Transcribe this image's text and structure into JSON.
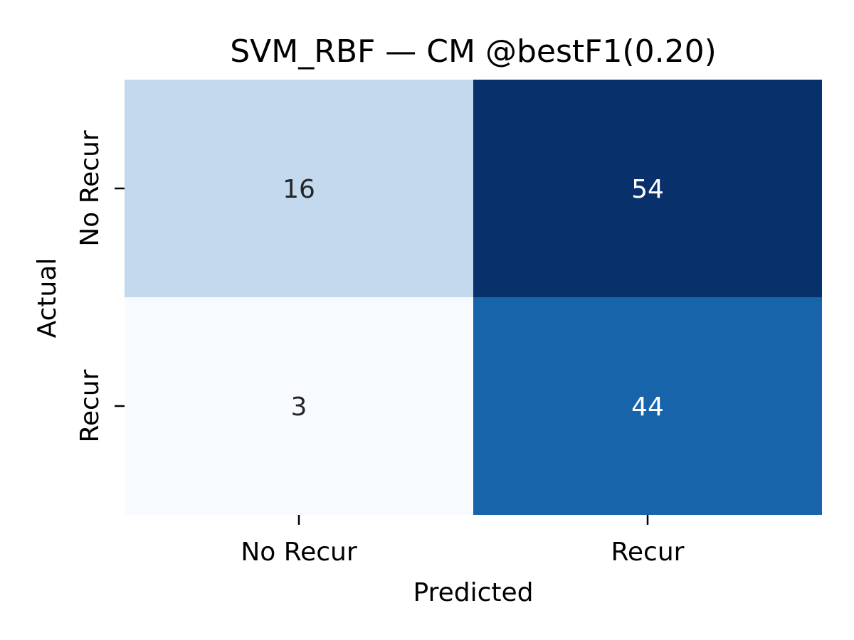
{
  "chart_data": {
    "type": "heatmap",
    "title": "SVM_RBF — CM @bestF1(0.20)",
    "xlabel": "Predicted",
    "ylabel": "Actual",
    "x_categories": [
      "No Recur",
      "Recur"
    ],
    "y_categories": [
      "No Recur",
      "Recur"
    ],
    "values": [
      [
        16,
        54
      ],
      [
        3,
        44
      ]
    ],
    "colormap": "Blues",
    "colorbar": false,
    "colors": {
      "cells": [
        [
          "#c3d9ee",
          "#08306b"
        ],
        [
          "#f7fbff",
          "#1864aa"
        ]
      ],
      "text_dark": "#262626",
      "text_light": "#ffffff"
    }
  }
}
